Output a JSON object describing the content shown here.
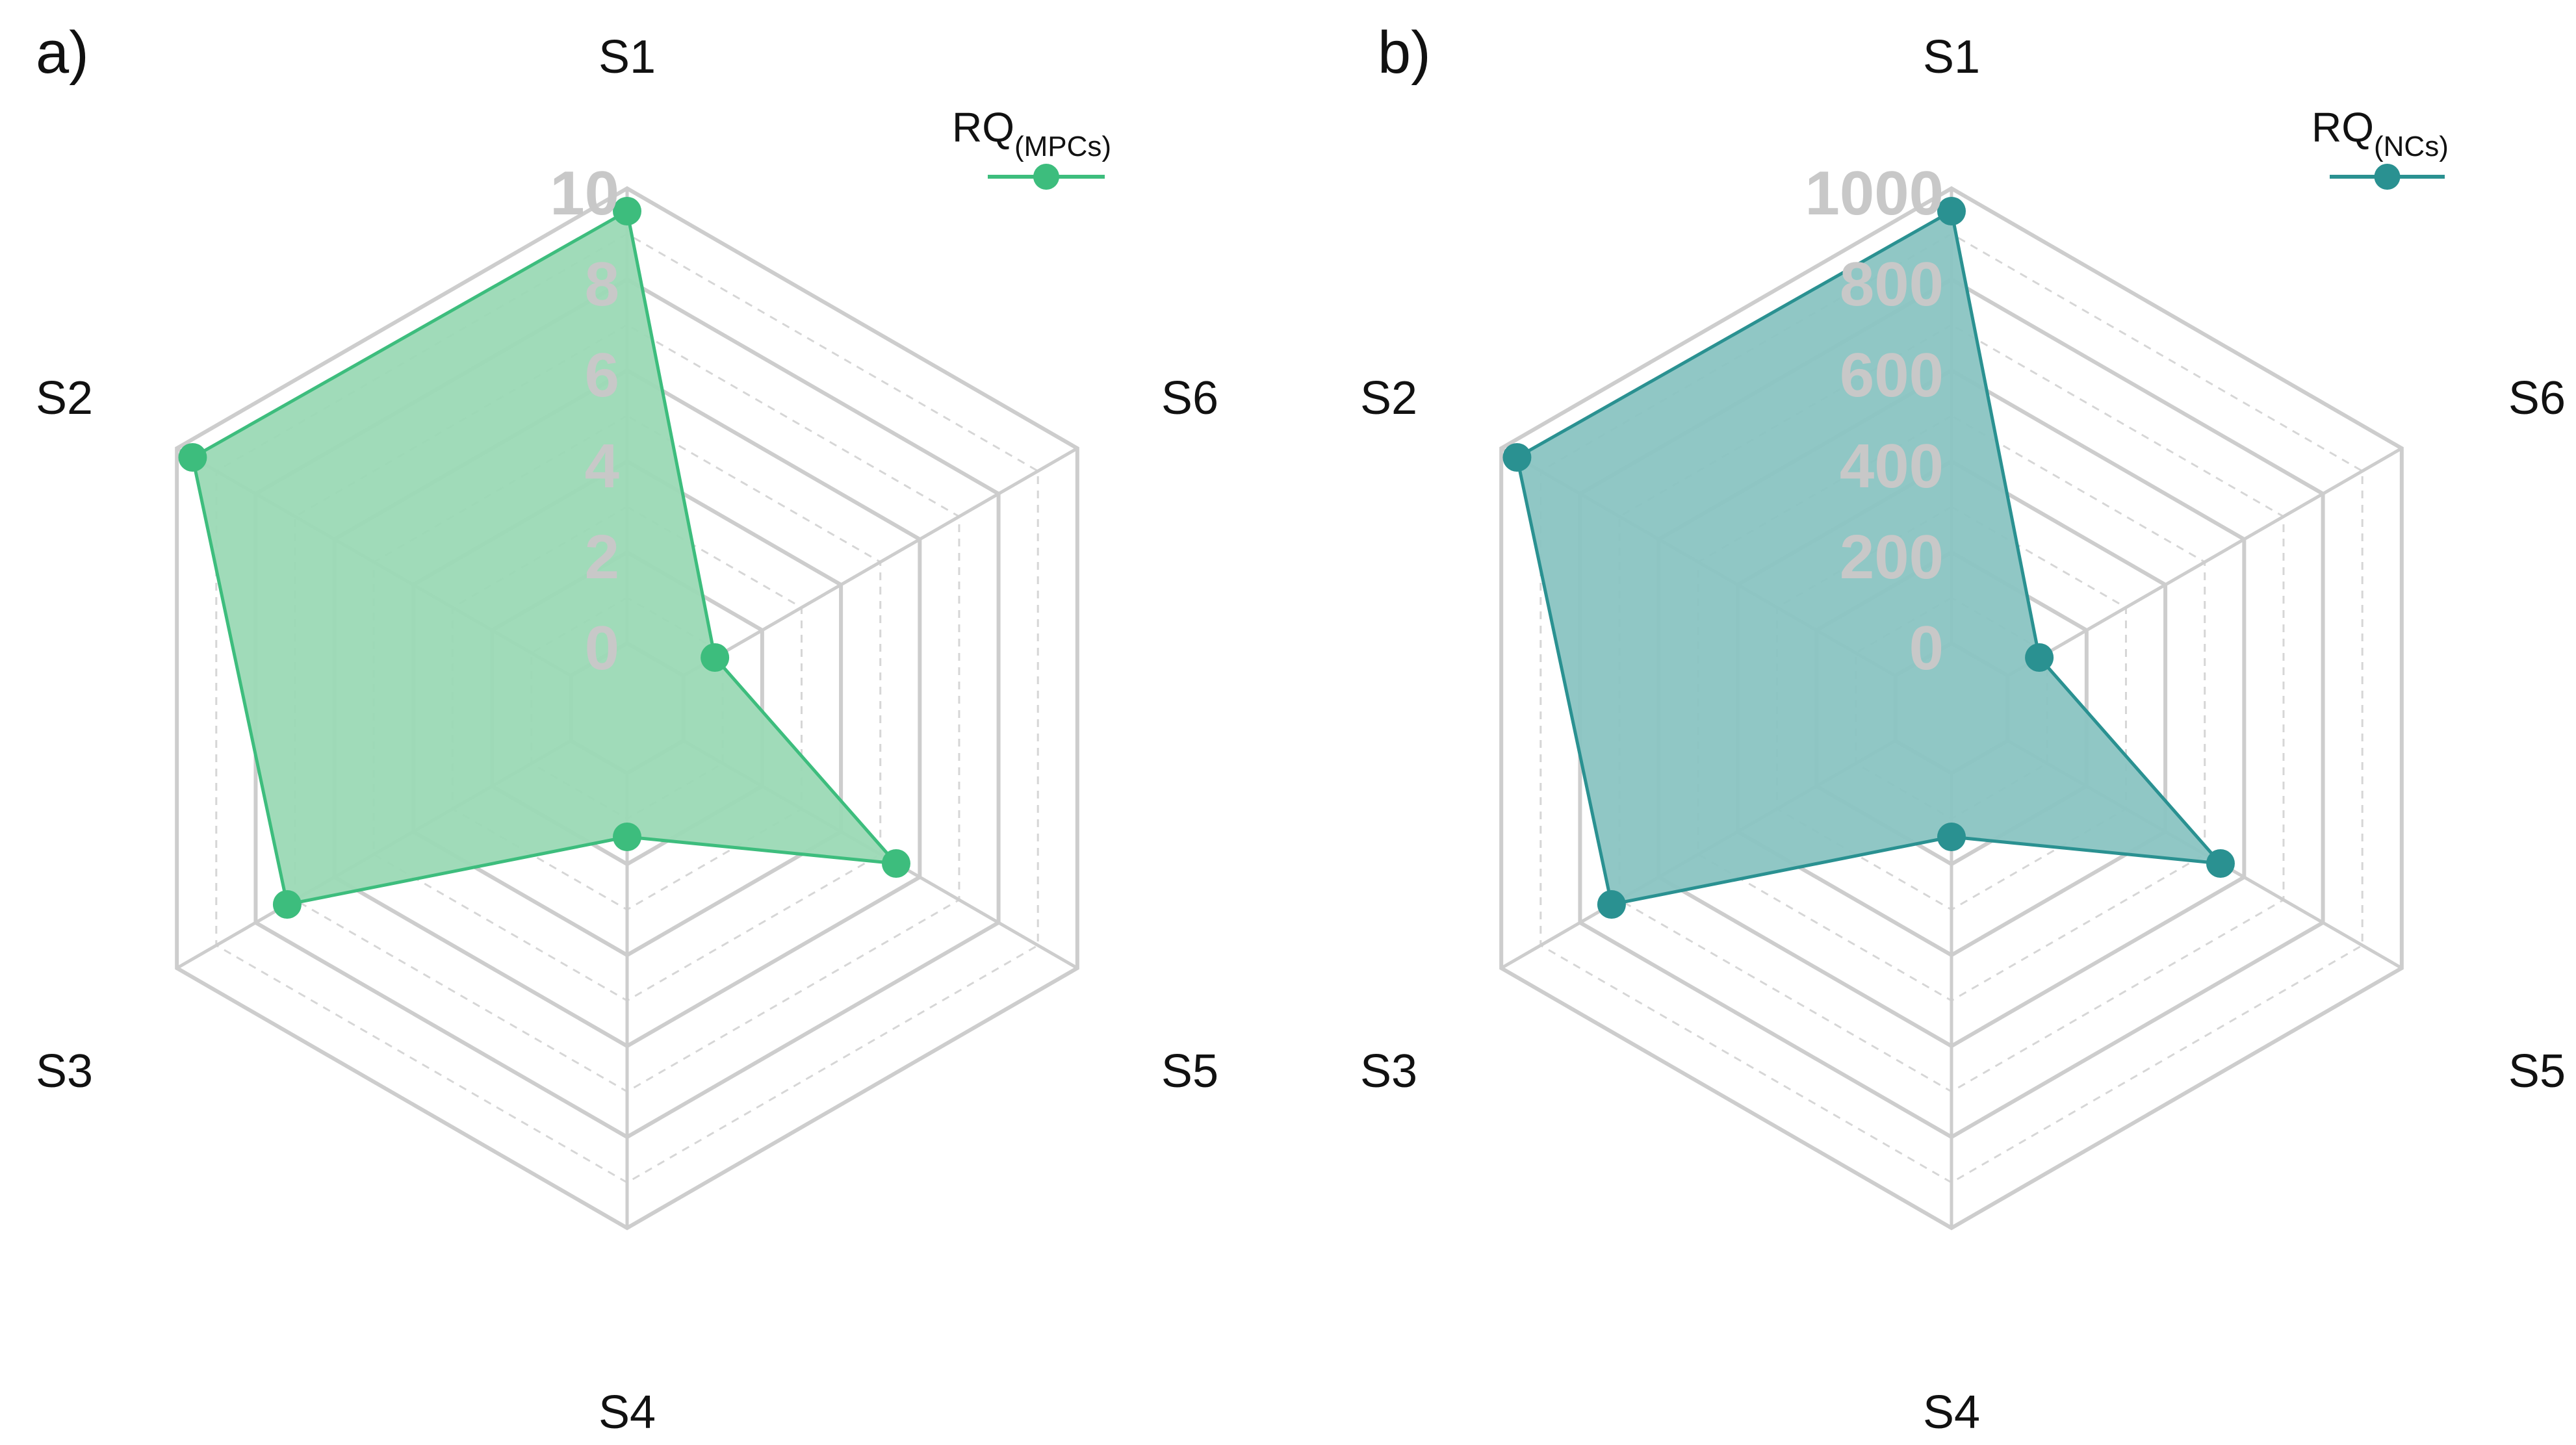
{
  "chart_data": [
    {
      "type": "radar",
      "panel_label": "a)",
      "axes": [
        "S1",
        "S2",
        "S3",
        "S4",
        "S5",
        "S6"
      ],
      "range": [
        0,
        10
      ],
      "ticks": [
        "0",
        "2",
        "4",
        "6",
        "8",
        "10"
      ],
      "grid_levels": 10,
      "series": [
        {
          "name": "RQ",
          "name_sub": "(MPCs)",
          "color": "#3dbd7d",
          "fill": "#9bd9b5",
          "values": [
            9.5,
            9.6,
            7.2,
            1.4,
            5.4,
            0.8
          ]
        }
      ],
      "legend": "top-right"
    },
    {
      "type": "radar",
      "panel_label": "b)",
      "axes": [
        "S1",
        "S2",
        "S3",
        "S4",
        "S5",
        "S6"
      ],
      "range": [
        0,
        1000
      ],
      "ticks": [
        "0",
        "200",
        "400",
        "600",
        "800",
        "1000"
      ],
      "grid_levels": 10,
      "series": [
        {
          "name": "RQ",
          "name_sub": "(NCs)",
          "color": "#2a9191",
          "fill": "#8ac4c2",
          "values": [
            950,
            960,
            720,
            140,
            540,
            80
          ]
        }
      ],
      "legend": "top-right"
    }
  ]
}
